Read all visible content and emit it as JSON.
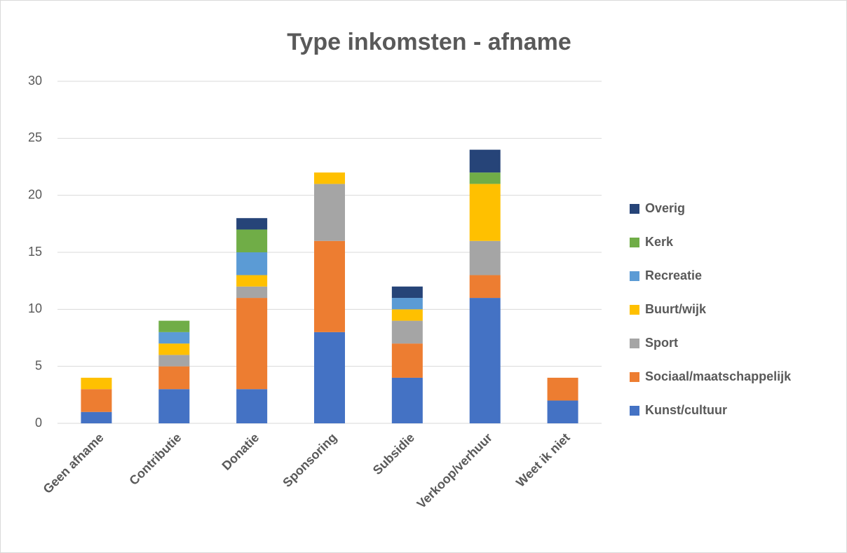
{
  "chart_data": {
    "type": "stacked_bar",
    "title": "Type inkomsten - afname",
    "categories": [
      "Geen afname",
      "Contributie",
      "Donatie",
      "Sponsoring",
      "Subsidie",
      "Verkoop/verhuur",
      "Weet ik niet"
    ],
    "series": [
      {
        "name": "Kunst/cultuur",
        "color": "#4472c4",
        "values": [
          1,
          3,
          3,
          8,
          4,
          11,
          2
        ]
      },
      {
        "name": "Sociaal/maatschappelijk",
        "color": "#ed7d31",
        "values": [
          2,
          2,
          8,
          8,
          3,
          2,
          2
        ]
      },
      {
        "name": "Sport",
        "color": "#a5a5a5",
        "values": [
          0,
          1,
          1,
          5,
          2,
          3,
          0
        ]
      },
      {
        "name": "Buurt/wijk",
        "color": "#ffc000",
        "values": [
          1,
          1,
          1,
          1,
          1,
          5,
          0
        ]
      },
      {
        "name": "Recreatie",
        "color": "#5b9bd5",
        "values": [
          0,
          1,
          2,
          0,
          1,
          0,
          0
        ]
      },
      {
        "name": "Kerk",
        "color": "#70ad47",
        "values": [
          0,
          1,
          2,
          0,
          0,
          1,
          0
        ]
      },
      {
        "name": "Overig",
        "color": "#264478",
        "values": [
          0,
          0,
          1,
          0,
          1,
          2,
          0
        ]
      }
    ],
    "ylim": [
      0,
      30
    ],
    "yticks": [
      0,
      5,
      10,
      15,
      20,
      25,
      30
    ],
    "grid": true,
    "legend": "right"
  }
}
